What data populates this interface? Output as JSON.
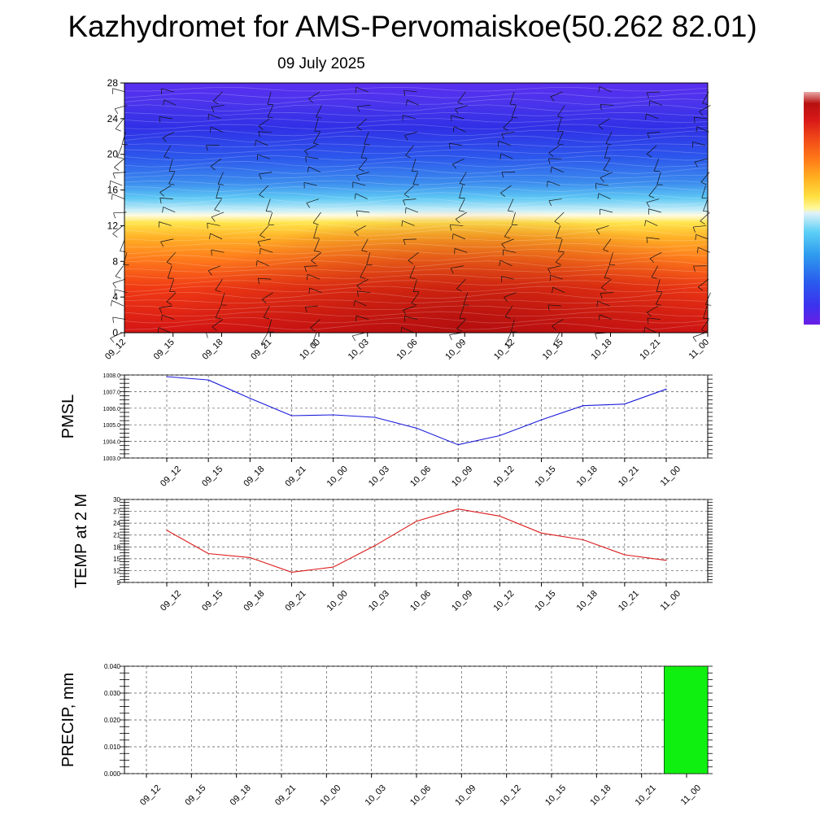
{
  "header": {
    "title": "Kazhydromet for AMS-Pervomaiskoe(50.262 82.01)",
    "date": "09 July 2025"
  },
  "colors": {
    "pmsl_line": "#1a1adc",
    "temp_line": "#dc1a1a",
    "precip_bar": "#10f010",
    "grid": "#555555",
    "barb": "#111111"
  },
  "chart_data": [
    {
      "type": "heatmap",
      "name": "cross-section",
      "x_ticks": [
        "09_12",
        "09_15",
        "09_18",
        "09_21",
        "10_00",
        "10_03",
        "10_06",
        "10_09",
        "10_12",
        "10_15",
        "10_18",
        "10_21",
        "11_00"
      ],
      "y_ticks": [
        "0",
        "4",
        "8",
        "12",
        "16",
        "20",
        "24",
        "28"
      ],
      "ylim": [
        0,
        28
      ],
      "overlay": "wind barbs",
      "colorbar": [
        "#6a1ee6",
        "#3c32ee",
        "#2a5aee",
        "#2e9bee",
        "#5ed0f6",
        "#e0f2f8",
        "#fff89a",
        "#ffe040",
        "#ffb020",
        "#ff7a18",
        "#f04818",
        "#d81818",
        "#b81010",
        "#e8a8a8"
      ]
    },
    {
      "type": "line",
      "ylabel": "PMSL",
      "x_ticks": [
        "09_12",
        "09_15",
        "09_18",
        "09_21",
        "10_00",
        "10_03",
        "10_06",
        "10_09",
        "10_12",
        "10_15",
        "10_18",
        "10_21",
        "11_00"
      ],
      "y_ticks": [
        "1003.0",
        "1004.0",
        "1005.0",
        "1006.0",
        "1007.0",
        "1008.0"
      ],
      "ylim": [
        1003,
        1008
      ],
      "values": [
        1007.9,
        1007.7,
        1006.6,
        1005.55,
        1005.6,
        1005.45,
        1004.8,
        1003.8,
        1004.35,
        1005.3,
        1006.15,
        1006.25,
        1007.15
      ]
    },
    {
      "type": "line",
      "ylabel": "TEMP at 2 M",
      "x_ticks": [
        "09_12",
        "09_15",
        "09_18",
        "09_21",
        "10_00",
        "10_03",
        "10_06",
        "10_09",
        "10_12",
        "10_15",
        "10_18",
        "10_21",
        "11_00"
      ],
      "y_ticks": [
        "9",
        "12",
        "15",
        "18",
        "21",
        "24",
        "27",
        "30"
      ],
      "ylim": [
        9,
        30
      ],
      "values": [
        22.2,
        16.3,
        15.3,
        11.6,
        12.9,
        18.3,
        24.5,
        27.6,
        25.8,
        21.5,
        19.8,
        16.0,
        14.6
      ]
    },
    {
      "type": "bar",
      "ylabel": "PRECIP, mm",
      "x_ticks": [
        "09_12",
        "09_15",
        "09_18",
        "09_21",
        "10_00",
        "10_03",
        "10_06",
        "10_09",
        "10_12",
        "10_15",
        "10_18",
        "10_21",
        "11_00"
      ],
      "y_ticks": [
        "0.000",
        "0.010",
        "0.020",
        "0.030",
        "0.040"
      ],
      "ylim": [
        0,
        0.04
      ],
      "values": [
        0,
        0,
        0,
        0,
        0,
        0,
        0,
        0,
        0,
        0,
        0,
        0,
        0.04
      ]
    }
  ]
}
